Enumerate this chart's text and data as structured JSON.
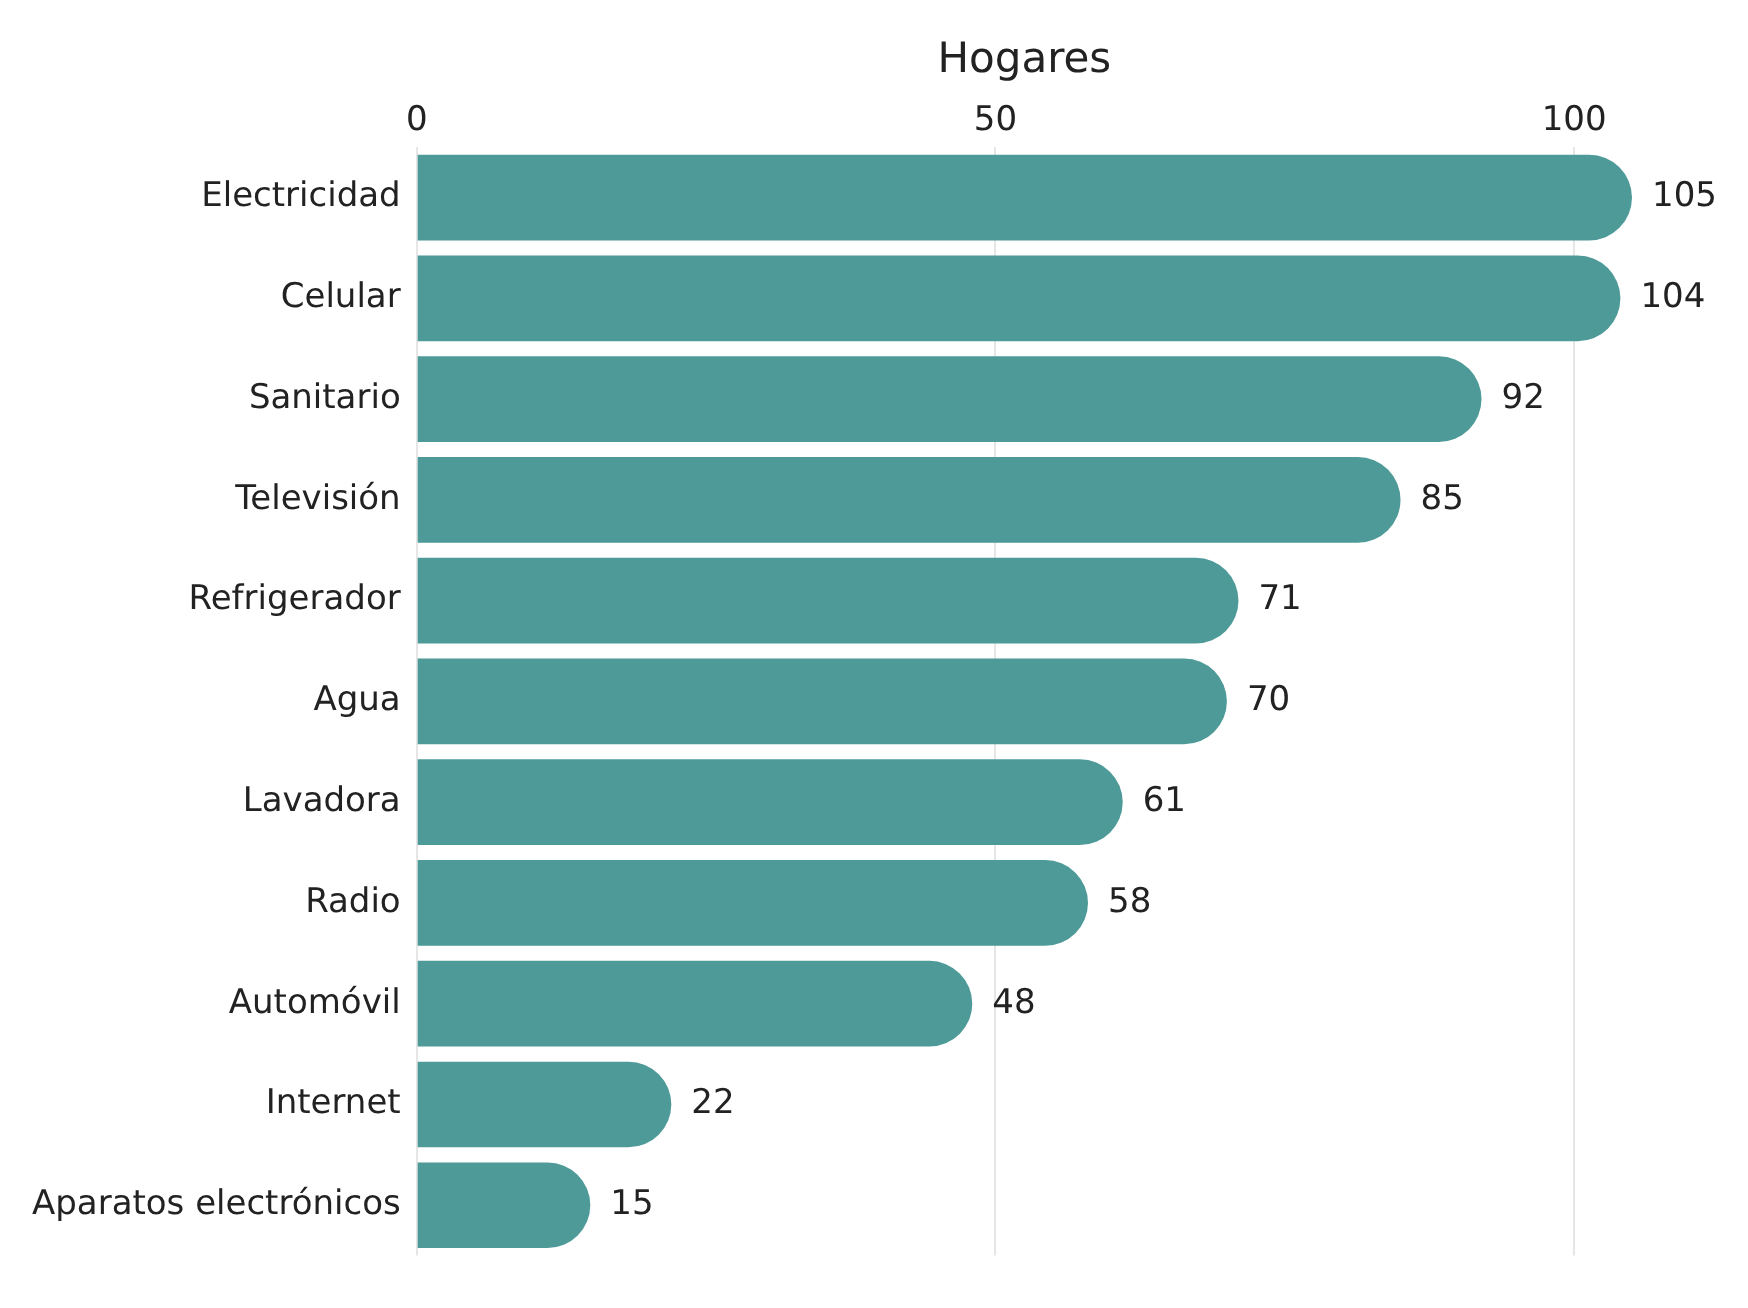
{
  "chart_data": {
    "type": "bar",
    "orientation": "horizontal",
    "xlabel": "Hogares",
    "categories": [
      "Electricidad",
      "Celular",
      "Sanitario",
      "Televisión",
      "Refrigerador",
      "Agua",
      "Lavadora",
      "Radio",
      "Automóvil",
      "Internet",
      "Aparatos electrónicos"
    ],
    "values": [
      105,
      104,
      92,
      85,
      71,
      70,
      61,
      58,
      48,
      22,
      15
    ],
    "color": "#4d9a98",
    "xlim": [
      0,
      105
    ],
    "xticks": [
      0,
      50,
      100
    ],
    "grid": "x",
    "data_labels": true,
    "legend": false
  }
}
